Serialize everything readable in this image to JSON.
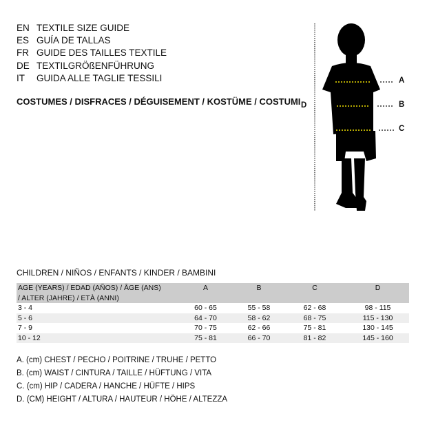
{
  "titles": [
    {
      "code": "EN",
      "text": "TEXTILE SIZE GUIDE"
    },
    {
      "code": "ES",
      "text": "GUÍA DE TALLAS"
    },
    {
      "code": "FR",
      "text": "GUIDE DES TAILLES TEXTILE"
    },
    {
      "code": "DE",
      "text": "TEXTILGRÖßENFÜHRUNG"
    },
    {
      "code": "IT",
      "text": "GUIDA ALLE TAGLIE TESSILI"
    }
  ],
  "costumes": "COSTUMES / DISFRACES / DÉGUISEMENT / KOSTÜME / COSTUMI",
  "figure": {
    "labels": {
      "A": "A",
      "B": "B",
      "C": "C",
      "D": "D"
    },
    "silhouette_color": "#000000",
    "measure_line_color": "#f2e200"
  },
  "children": "CHILDREN / NIÑOS / ENFANTS / KINDER / BAMBINI",
  "table": {
    "header": [
      "AGE (YEARS) / EDAD (AÑOS) / ÂGE (ANS) / ALTER (JAHRE) / ETÀ (ANNI)",
      "A",
      "B",
      "C",
      "D"
    ],
    "rows": [
      [
        "3 - 4",
        "60 - 65",
        "55 - 58",
        "62 - 68",
        "98 - 115"
      ],
      [
        "5 - 6",
        "64 - 70",
        "58 - 62",
        "68 - 75",
        "115 - 130"
      ],
      [
        "7 - 9",
        "70 - 75",
        "62 - 66",
        "75 - 81",
        "130 - 145"
      ],
      [
        "10 - 12",
        "75 - 81",
        "66 - 70",
        "81 - 82",
        "145 - 160"
      ]
    ]
  },
  "legend": [
    "A. (cm) CHEST / PECHO / POITRINE / TRUHE / PETTO",
    "B. (cm) WAIST / CINTURA / TAILLE / HÜFTUNG / VITA",
    "C. (cm) HIP / CADERA / HANCHE / HÜFTE / HIPS",
    "D. (CM) HEIGHT / ALTURA / HAUTEUR / HÖHE / ALTEZZA"
  ]
}
